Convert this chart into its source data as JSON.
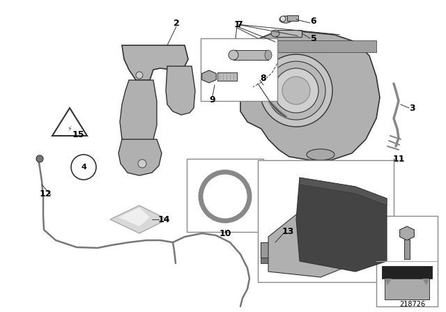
{
  "bg_color": "#ffffff",
  "fig_width": 6.4,
  "fig_height": 4.48,
  "dpi": 100,
  "diagram_id": "218726",
  "lc": "#333333",
  "pc": "#aaaaaa",
  "dc": "#666666",
  "ec": "#999999"
}
